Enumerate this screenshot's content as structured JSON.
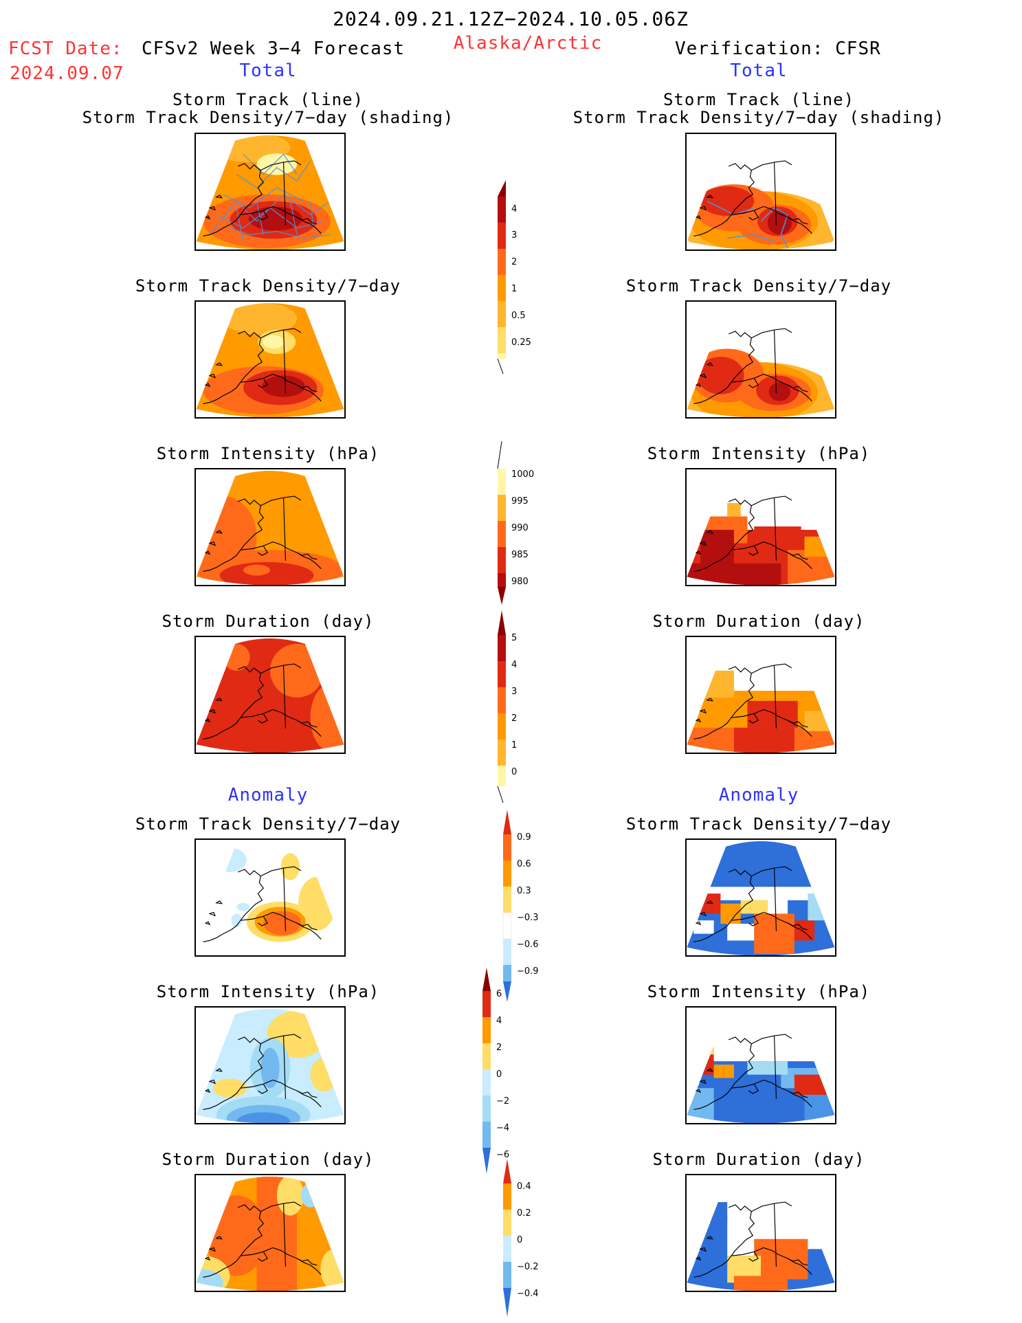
{
  "header": {
    "period": "2024.09.21.12Z−2024.10.05.06Z",
    "fcst_label": "FCST Date:",
    "fcst_date": "2024.09.07",
    "model": "CFSv2 Week 3−4 Forecast",
    "region": "Alaska/Arctic",
    "verification": "Verification: CFSR",
    "left_total": "Total",
    "right_total": "Total",
    "left_anomaly": "Anomaly",
    "right_anomaly": "Anomaly"
  },
  "panels": {
    "p1_line1": "Storm Track (line)",
    "p1_line2": "Storm Track Density/7−day (shading)",
    "density": "Storm Track Density/7−day",
    "intensity": "Storm Intensity (hPa)",
    "duration": "Storm Duration (day)"
  },
  "colorbars": {
    "density": [
      "4",
      "3",
      "2",
      "1",
      "0.5",
      "0.25"
    ],
    "intensity": [
      "1000",
      "995",
      "990",
      "985",
      "980"
    ],
    "duration": [
      "5",
      "4",
      "3",
      "2",
      "1",
      "0"
    ],
    "density_anom": [
      "0.9",
      "0.6",
      "0.3",
      "−0.3",
      "−0.6",
      "−0.9"
    ],
    "intensity_anom": [
      "6",
      "4",
      "2",
      "0",
      "−2",
      "−4",
      "−6"
    ],
    "duration_anom": [
      "0.4",
      "0.2",
      "0",
      "−0.2",
      "−0.4"
    ]
  },
  "colors": {
    "header_red": "#ff3333",
    "header_blue": "#2b33ff",
    "warm": [
      "#fff6a8",
      "#ffdd66",
      "#ffb62e",
      "#ff9a00",
      "#ff6a1a",
      "#e02a14",
      "#b30f0f",
      "#8a0000"
    ],
    "cool": [
      "#c9ecff",
      "#a4dcf6",
      "#72b9f0",
      "#4a94e8",
      "#2e6fd9",
      "#1a4fd0"
    ]
  }
}
